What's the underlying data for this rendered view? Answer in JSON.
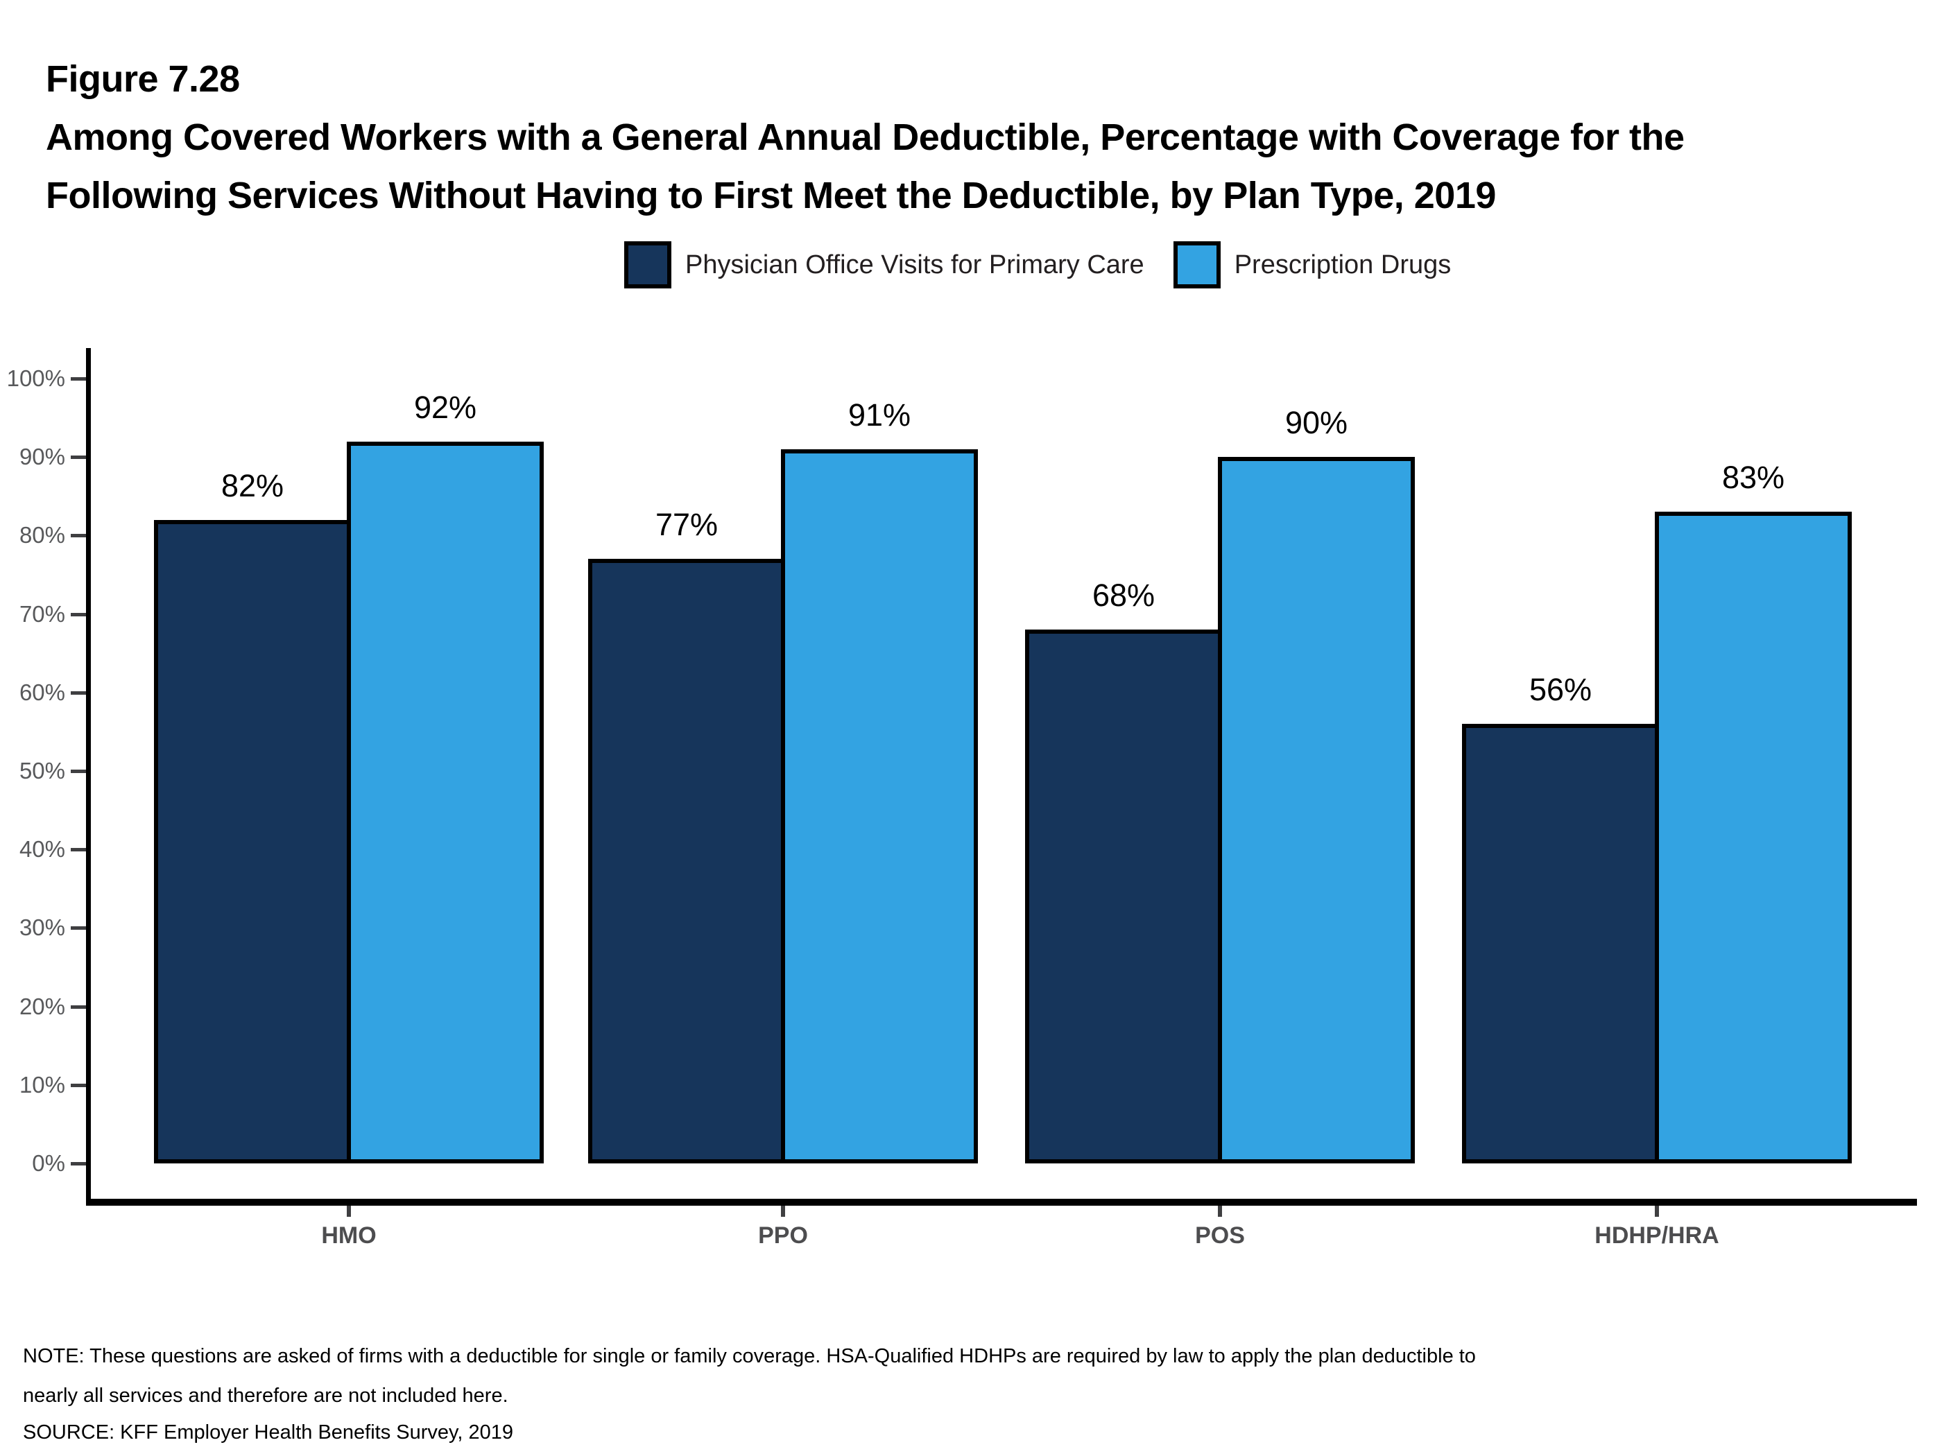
{
  "figure": {
    "number": "Figure 7.28",
    "title_line1": "Among Covered Workers with a General Annual Deductible, Percentage with Coverage for the",
    "title_line2": "Following Services Without Having to First Meet the Deductible, by Plan Type, 2019"
  },
  "legend": {
    "items": [
      {
        "label": "Physician Office Visits for Primary Care",
        "color": "#16355B"
      },
      {
        "label": "Prescription Drugs",
        "color": "#33A3E2"
      }
    ]
  },
  "chart_data": {
    "type": "bar",
    "title": "Among Covered Workers with a General Annual Deductible, Percentage with Coverage for the Following Services Without Having to First Meet the Deductible, by Plan Type, 2019",
    "categories": [
      "HMO",
      "PPO",
      "POS",
      "HDHP/HRA"
    ],
    "series": [
      {
        "name": "Physician Office Visits for Primary Care",
        "color": "#16355B",
        "values": [
          82,
          77,
          68,
          56
        ]
      },
      {
        "name": "Prescription Drugs",
        "color": "#33A3E2",
        "values": [
          92,
          91,
          90,
          83
        ]
      }
    ],
    "value_suffix": "%",
    "xlabel": "",
    "ylabel": "",
    "ylim": [
      0,
      100
    ],
    "ytick_labels": [
      "0%",
      "10%",
      "20%",
      "30%",
      "40%",
      "50%",
      "60%",
      "70%",
      "80%",
      "90%",
      "100%"
    ],
    "grid": false,
    "legend_position": "top",
    "bar_border_color": "#000000",
    "axis_color": "#000000",
    "tick_label_color": "#58595B",
    "category_label_color": "#4D4D4F"
  },
  "note": {
    "text": "NOTE: These questions are asked of firms with a deductible for single or family coverage. HSA-Qualified HDHPs are required by law to apply the plan deductible to nearly all services and therefore are not included here.",
    "source": "SOURCE: KFF Employer Health Benefits Survey, 2019"
  }
}
